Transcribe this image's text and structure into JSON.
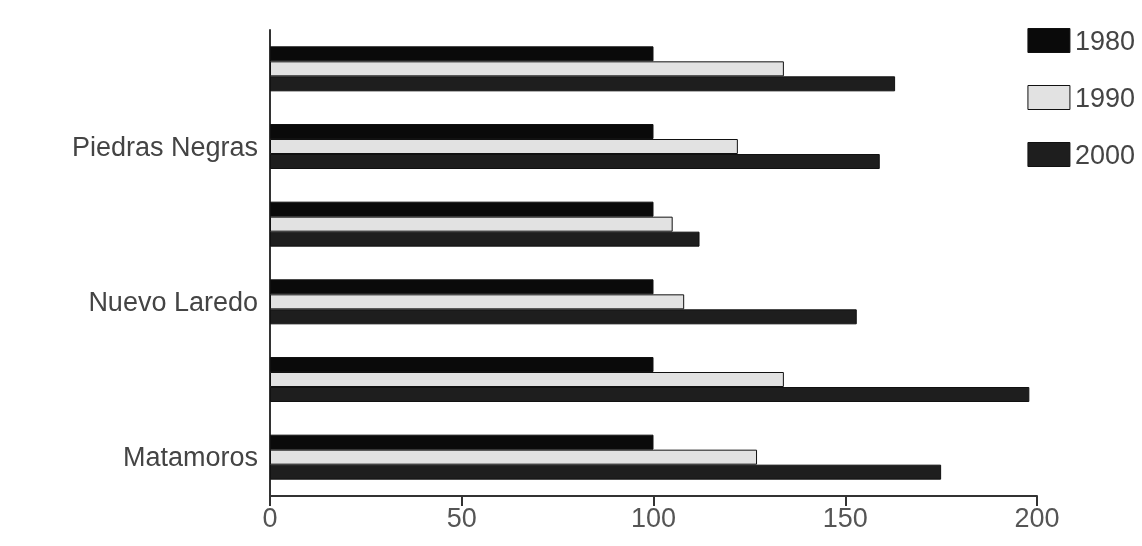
{
  "chart_data": {
    "type": "bar",
    "orientation": "horizontal",
    "categories": [
      null,
      "Piedras Negras",
      null,
      "Nuevo Laredo",
      null,
      "Matamoros"
    ],
    "series": [
      {
        "name": "1980",
        "color": "#0a0a0a",
        "values": [
          100,
          100,
          100,
          100,
          100,
          100
        ]
      },
      {
        "name": "1990",
        "color": "#e2e2e2",
        "values": [
          134,
          122,
          105,
          108,
          134,
          127
        ]
      },
      {
        "name": "2000",
        "color": "#1e1e1e",
        "values": [
          163,
          159,
          112,
          153,
          198,
          175
        ]
      }
    ],
    "xlim": [
      0,
      200
    ],
    "xticks": [
      0,
      50,
      100,
      150,
      200
    ],
    "grid": false,
    "legend": "top right"
  }
}
